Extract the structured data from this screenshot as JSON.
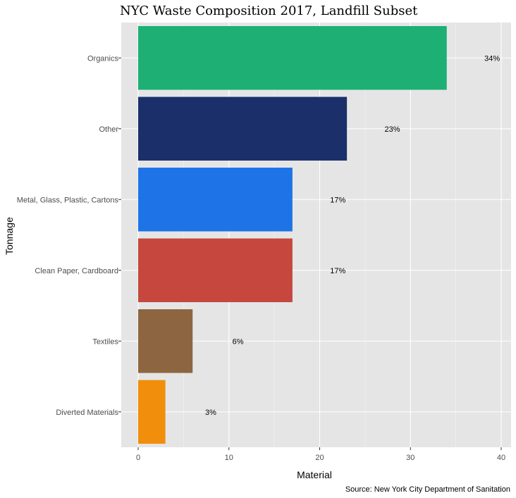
{
  "chart_data": {
    "type": "bar",
    "orientation": "horizontal",
    "title": "NYC Waste Composition 2017, Landfill Subset",
    "xlabel": "Material",
    "ylabel": "Tonnage",
    "caption": "Source: New York City Department of Sanitation",
    "categories": [
      "Organics",
      "Other",
      "Metal, Glass, Plastic, Cartons",
      "Clean Paper, Cardboard",
      "Textiles",
      "Diverted Materials"
    ],
    "values": [
      34,
      23,
      17,
      17,
      6,
      3
    ],
    "data_labels": [
      "34%",
      "23%",
      "17%",
      "17%",
      "6%",
      "3%"
    ],
    "colors": [
      "#1daf74",
      "#1b2f6b",
      "#1e74e6",
      "#c5473d",
      "#8d6641",
      "#f18e0c"
    ],
    "xlim": [
      0,
      40
    ],
    "x_ticks": [
      0,
      10,
      20,
      30,
      40
    ],
    "x_tick_labels": [
      "0",
      "10",
      "20",
      "30",
      "40"
    ],
    "grid": true,
    "legend": "none",
    "panel_background": "#e5e5e5"
  }
}
